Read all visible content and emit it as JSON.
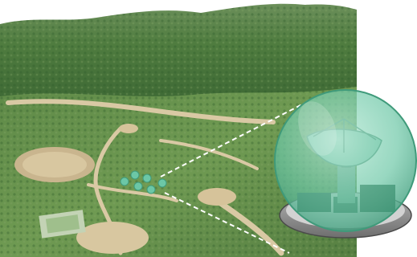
{
  "image": {
    "kind": "illustration",
    "subjects": [
      "aerial-landscape-photo",
      "radome-inset"
    ],
    "colors": {
      "sky": "#ffffff",
      "mountain_far": "#3f6e3a",
      "forest": "#4f7c3f",
      "forest_dark": "#2f5a2a",
      "ground": "#c9b58e",
      "clearing": "#d8c7a0",
      "radome_glass": "#6cc7a6",
      "radome_edge": "#3f9a7a",
      "dish": "#9fd1c0",
      "platform": "#8c8c8c",
      "equipment": "#2f5c47",
      "dashed_line": "#ffffff"
    }
  }
}
